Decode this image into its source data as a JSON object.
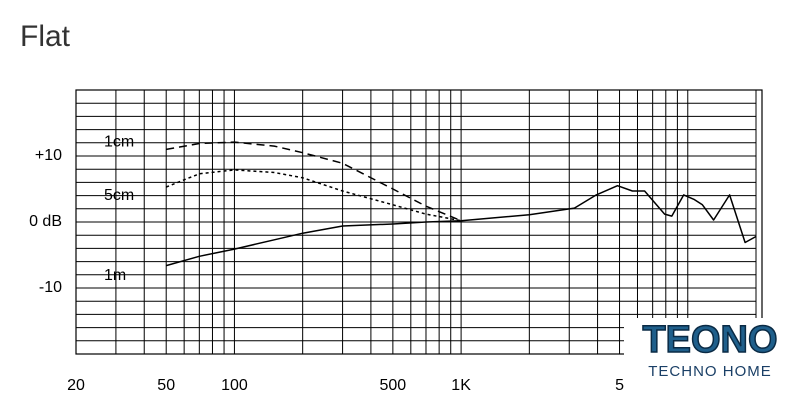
{
  "chart_data": {
    "type": "line",
    "title": "Flat",
    "xscale": "log",
    "xlim": [
      20,
      20000
    ],
    "ylim": [
      -20,
      20
    ],
    "xticks": [
      20,
      50,
      100,
      500,
      {
        "value": 1000,
        "label": "1K"
      },
      {
        "value": 5000,
        "label": "5"
      }
    ],
    "yticks": [
      {
        "value": 10,
        "label": "+10"
      },
      {
        "value": 0,
        "label": "0 dB"
      },
      {
        "value": -10,
        "label": "-10"
      }
    ],
    "minor_xticks": [
      20,
      30,
      40,
      50,
      60,
      70,
      80,
      90,
      100,
      200,
      300,
      400,
      500,
      600,
      700,
      800,
      900,
      1000,
      2000,
      3000,
      4000,
      5000,
      6000,
      7000,
      8000,
      9000,
      10000,
      20000
    ],
    "minor_yticks": [
      -20,
      -18,
      -16,
      -14,
      -12,
      -10,
      -8,
      -6,
      -4,
      -2,
      0,
      2,
      4,
      6,
      8,
      10,
      12,
      14,
      16,
      18,
      20
    ],
    "grid": true,
    "series": [
      {
        "name": "1cm",
        "color": "#000000",
        "style": "dashed",
        "x": [
          50,
          70,
          100,
          150,
          200,
          300,
          500,
          700,
          1000
        ],
        "values": [
          11,
          11.9,
          12.1,
          11.5,
          10.5,
          8.9,
          5,
          2.4,
          0.2
        ]
      },
      {
        "name": "5cm",
        "color": "#000000",
        "style": "dotted",
        "x": [
          50,
          70,
          100,
          150,
          200,
          300,
          500,
          700,
          1000
        ],
        "values": [
          5.3,
          7.3,
          7.9,
          7.5,
          6.7,
          4.7,
          2.6,
          1.2,
          0.2
        ]
      },
      {
        "name": "1m",
        "color": "#000000",
        "style": "solid",
        "x": [
          50,
          70,
          100,
          150,
          200,
          300,
          500,
          700,
          1000,
          2000,
          3160,
          3950,
          4900,
          5700,
          6450,
          7900,
          8500,
          9600,
          10700,
          11600,
          13000,
          15300,
          17900,
          20000
        ],
        "values": [
          -6.6,
          -5.2,
          -4.1,
          -2.7,
          -1.7,
          -0.6,
          -0.3,
          0,
          0.2,
          1.1,
          2.1,
          4.1,
          5.5,
          4.7,
          4.7,
          1.2,
          0.9,
          4.1,
          3.4,
          2.6,
          0.3,
          4.1,
          -3.1,
          -2.2
        ]
      }
    ]
  },
  "watermark": {
    "title": "TEONO",
    "subtitle": "TECHNO HOME"
  }
}
